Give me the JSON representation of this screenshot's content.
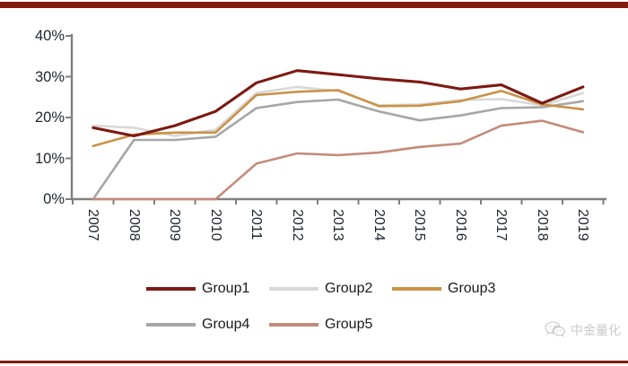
{
  "style": {
    "accent_red": "#84190f",
    "axis_color": "#7f7f7f",
    "axis_label_color": "#1e2530",
    "legend_text_color": "#1a1a1a",
    "watermark_color": "#c9c9c9"
  },
  "watermark": {
    "text": "中金量化",
    "icon": "wechat-icon"
  },
  "chart_data": {
    "type": "line",
    "title": "",
    "xlabel": "",
    "ylabel": "",
    "x": [
      "2007",
      "2008",
      "2009",
      "2010",
      "2011",
      "2012",
      "2013",
      "2014",
      "2015",
      "2016",
      "2017",
      "2018",
      "2019"
    ],
    "y_tick_labels": [
      "0%",
      "10%",
      "20%",
      "30%",
      "40%"
    ],
    "ylim": [
      0,
      40
    ],
    "grid": false,
    "legend_position": "bottom",
    "legend_rows": [
      [
        "Group1",
        "Group2",
        "Group3"
      ],
      [
        "Group4",
        "Group5"
      ]
    ],
    "series": [
      {
        "name": "Group2",
        "color": "#d8d8d8",
        "width": 2.6,
        "values": [
          18,
          17.5,
          15.5,
          17,
          26,
          27.5,
          26.5,
          23,
          23.2,
          24.3,
          24.5,
          23,
          26
        ]
      },
      {
        "name": "Group4",
        "color": "#a6a6a6",
        "width": 2.6,
        "values": [
          0,
          14.5,
          14.5,
          15.3,
          22.3,
          23.8,
          24.4,
          21.5,
          19.3,
          20.5,
          22.3,
          22.5,
          24
        ]
      },
      {
        "name": "Group5",
        "color": "#c48b7b",
        "width": 2.6,
        "values": [
          0,
          0,
          0,
          0,
          8.7,
          11.2,
          10.8,
          11.4,
          12.8,
          13.6,
          18,
          19.2,
          16.4
        ]
      },
      {
        "name": "Group3",
        "color": "#ca9246",
        "width": 2.6,
        "values": [
          13,
          15.8,
          16.3,
          16.3,
          25.5,
          26.3,
          26.7,
          22.8,
          22.9,
          24,
          26.5,
          23.2,
          22
        ]
      },
      {
        "name": "Group1",
        "color": "#7c1a12",
        "width": 3.1,
        "values": [
          17.5,
          15.5,
          18,
          21.5,
          28.5,
          31.5,
          30.5,
          29.5,
          28.7,
          27,
          28,
          23.5,
          27.5
        ]
      }
    ]
  }
}
